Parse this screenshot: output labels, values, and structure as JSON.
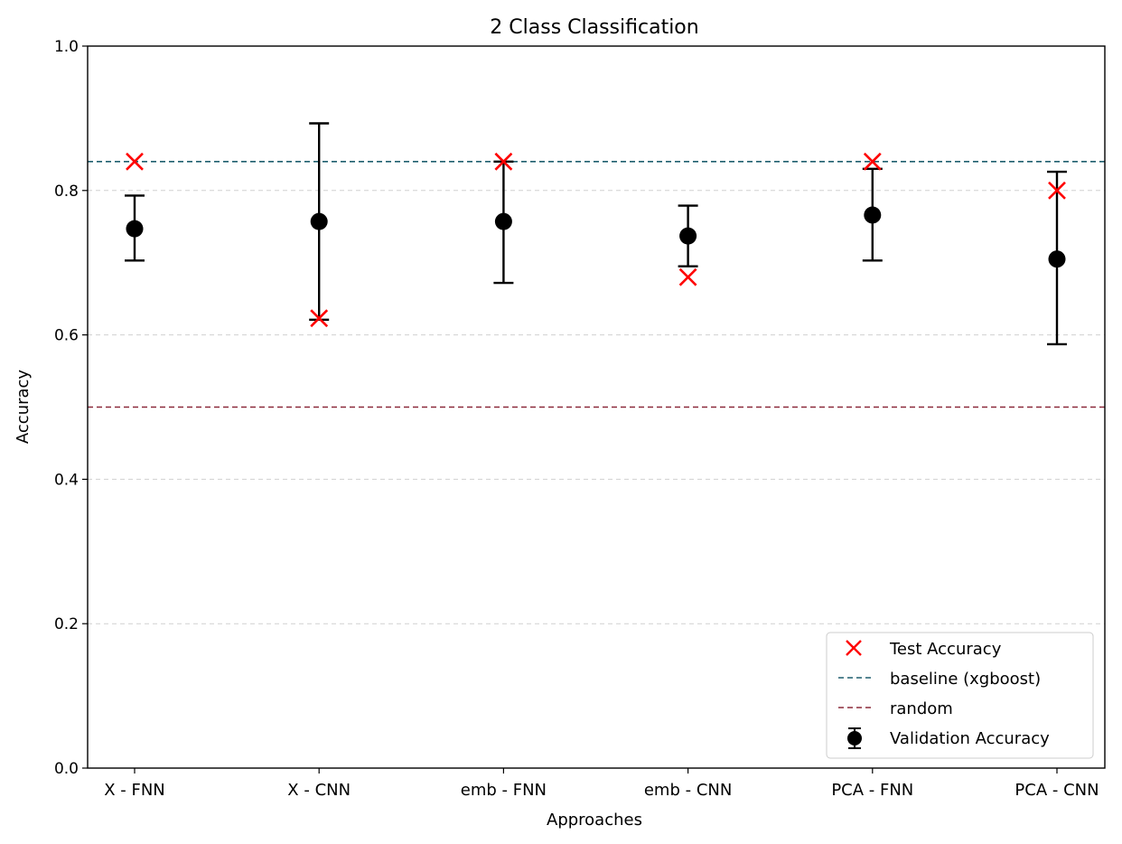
{
  "chart_data": {
    "type": "scatter",
    "title": "2 Class Classification",
    "xlabel": "Approaches",
    "ylabel": "Accuracy",
    "ylim": [
      0,
      1
    ],
    "yticks": [
      0.0,
      0.2,
      0.4,
      0.6,
      0.8,
      1.0
    ],
    "ytick_labels": [
      "0.0",
      "0.2",
      "0.4",
      "0.6",
      "0.8",
      "1.0"
    ],
    "grid": "horizontal dashed",
    "categories": [
      "X - FNN",
      "X - CNN",
      "emb - FNN",
      "emb - CNN",
      "PCA - FNN",
      "PCA - CNN"
    ],
    "series": [
      {
        "name": "Validation Accuracy",
        "kind": "errorbar",
        "color": "#000000",
        "values": [
          0.747,
          0.757,
          0.757,
          0.737,
          0.766,
          0.705
        ],
        "lower": [
          0.703,
          0.621,
          0.672,
          0.695,
          0.703,
          0.587
        ],
        "upper": [
          0.793,
          0.893,
          0.84,
          0.779,
          0.83,
          0.826
        ]
      },
      {
        "name": "Test Accuracy",
        "kind": "marker-x",
        "color": "#ff0000",
        "values": [
          0.84,
          0.623,
          0.84,
          0.68,
          0.84,
          0.8
        ]
      }
    ],
    "reference_lines": [
      {
        "name": "baseline (xgboost)",
        "value": 0.84,
        "color": "#1f5f6e"
      },
      {
        "name": "random",
        "value": 0.5,
        "color": "#8b2a3a"
      }
    ],
    "legend": {
      "placement": "lower-right",
      "entries": [
        "Test Accuracy",
        "baseline (xgboost)",
        "random",
        "Validation Accuracy"
      ]
    }
  }
}
